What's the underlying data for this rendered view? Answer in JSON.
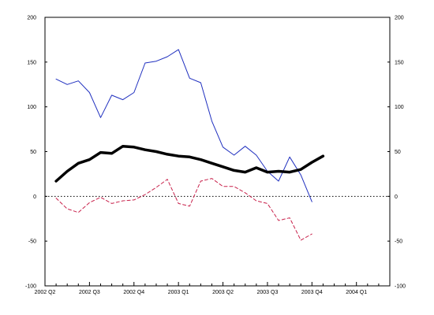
{
  "chart_data": {
    "type": "line",
    "title": "",
    "xlabel": "",
    "ylabel": "",
    "ylim": [
      -100,
      200
    ],
    "y_ticks": [
      -100,
      -50,
      0,
      50,
      100,
      150,
      200
    ],
    "y_axis_sides": [
      "left",
      "right"
    ],
    "grid": false,
    "legend": "none",
    "x_labels": [
      "2002 Q2",
      "2002 Q3",
      "2002 Q4",
      "2003 Q1",
      "2003 Q2",
      "2003 Q3",
      "2003 Q4",
      "2004 Q1"
    ],
    "x_count": 32,
    "x_label_every": 4,
    "series": [
      {
        "style": "thin-solid",
        "color": "#1f2fbf",
        "values": [
          131,
          125,
          129,
          116,
          88,
          113,
          108,
          116,
          149,
          151,
          156,
          164,
          132,
          127,
          84,
          55,
          46,
          56,
          46,
          28,
          17,
          44,
          24,
          -6
        ]
      },
      {
        "style": "thick-solid",
        "color": "#000000",
        "values": [
          17,
          28,
          37,
          41,
          49,
          48,
          56,
          55,
          52,
          50,
          47,
          45,
          44,
          41,
          37,
          33,
          29,
          27,
          32,
          27,
          28,
          27,
          30,
          38,
          45
        ]
      },
      {
        "style": "dashed",
        "color": "#c8204a",
        "values": [
          -2,
          -14,
          -18,
          -7,
          -1,
          -8,
          -5,
          -4,
          2,
          10,
          19,
          -8,
          -11,
          17,
          20,
          11,
          11,
          4,
          -5,
          -8,
          -27,
          -24,
          -49,
          -42
        ]
      }
    ],
    "reference_line": {
      "y": 0,
      "style": "dotted",
      "color": "#000000"
    }
  }
}
